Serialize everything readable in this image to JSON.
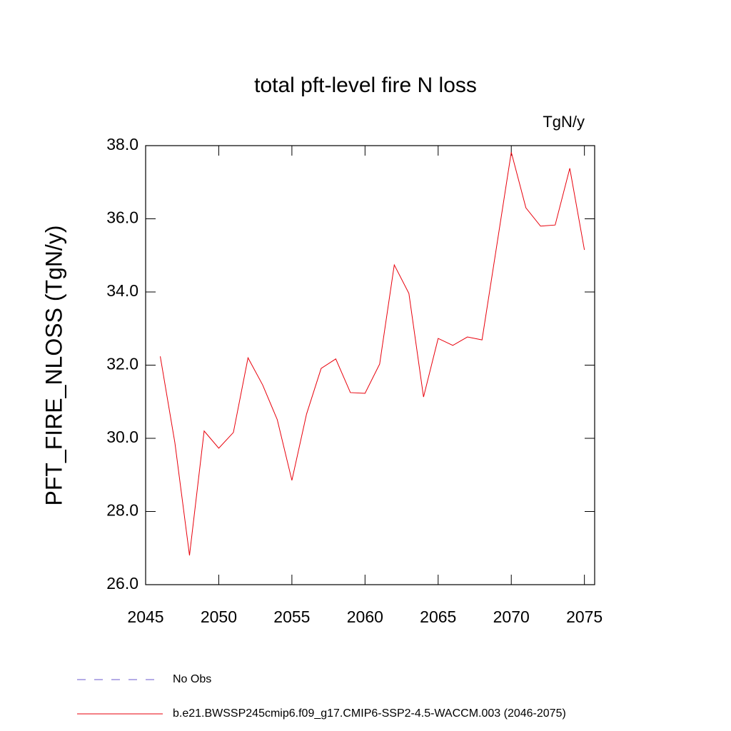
{
  "chart_data": {
    "type": "line",
    "title": "total pft-level fire N loss",
    "units": "TgN/y",
    "ylabel": "PFT_FIRE_NLOSS  (TgN/y)",
    "x": [
      2046,
      2047,
      2048,
      2049,
      2050,
      2051,
      2052,
      2053,
      2054,
      2055,
      2056,
      2057,
      2058,
      2059,
      2060,
      2061,
      2062,
      2063,
      2064,
      2065,
      2066,
      2067,
      2068,
      2069,
      2070,
      2071,
      2072,
      2073,
      2074,
      2075
    ],
    "series": [
      {
        "name": "No Obs",
        "color": "#6a5acd",
        "dashed": true,
        "values": null
      },
      {
        "name": "b.e21.BWSSP245cmip6.f09_g17.CMIP6-SSP2-4.5-WACCM.003 (2046-2075)",
        "color": "#e8000b",
        "values": [
          32.24,
          29.88,
          26.8,
          30.2,
          29.73,
          30.16,
          32.2,
          31.46,
          30.51,
          28.85,
          30.66,
          31.91,
          32.17,
          31.25,
          31.23,
          32.03,
          34.74,
          33.96,
          31.13,
          32.73,
          32.54,
          32.77,
          32.69,
          35.25,
          37.82,
          36.3,
          35.8,
          35.83,
          37.38,
          35.15
        ]
      }
    ],
    "xlim": [
      2045,
      2075.7
    ],
    "xticks": [
      2045,
      2050,
      2055,
      2060,
      2065,
      2070,
      2075
    ],
    "ylim": [
      26,
      38
    ],
    "yticks": [
      {
        "value": 26,
        "label": "26.0"
      },
      {
        "value": 28,
        "label": "28.0"
      },
      {
        "value": 30,
        "label": "30.0"
      },
      {
        "value": 32,
        "label": "32.0"
      },
      {
        "value": 34,
        "label": "34.0"
      },
      {
        "value": 36,
        "label": "36.0"
      },
      {
        "value": 38,
        "label": "38.0"
      }
    ],
    "grid": false
  }
}
